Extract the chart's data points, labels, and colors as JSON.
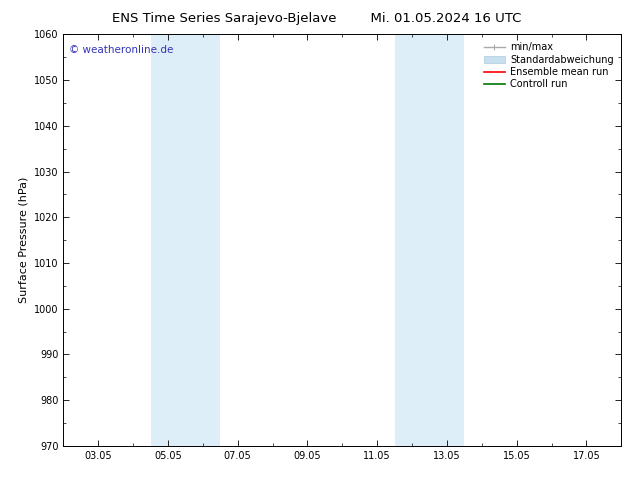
{
  "title_left": "ENS Time Series Sarajevo-Bjelave",
  "title_right": "Mi. 01.05.2024 16 UTC",
  "ylabel": "Surface Pressure (hPa)",
  "ylim": [
    970,
    1060
  ],
  "yticks": [
    970,
    980,
    990,
    1000,
    1010,
    1020,
    1030,
    1040,
    1050,
    1060
  ],
  "xtick_labels": [
    "03.05",
    "05.05",
    "07.05",
    "09.05",
    "11.05",
    "13.05",
    "15.05",
    "17.05"
  ],
  "xtick_positions": [
    2,
    4,
    6,
    8,
    10,
    12,
    14,
    16
  ],
  "x_minor_positions": [
    1,
    2,
    3,
    4,
    5,
    6,
    7,
    8,
    9,
    10,
    11,
    12,
    13,
    14,
    15,
    16,
    17
  ],
  "xlim": [
    1,
    17
  ],
  "shaded_bands": [
    {
      "xmin": 3.5,
      "xmax": 5.5
    },
    {
      "xmin": 10.5,
      "xmax": 12.5
    }
  ],
  "shaded_color": "#ddeef8",
  "background_color": "#ffffff",
  "watermark_text": "© weatheronline.de",
  "watermark_color": "#3333bb",
  "legend_entries": [
    {
      "label": "min/max",
      "color": "#aaaaaa",
      "lw": 1.0
    },
    {
      "label": "Standardabweichung",
      "color": "#c8dff0",
      "lw": 5
    },
    {
      "label": "Ensemble mean run",
      "color": "#ff0000",
      "lw": 1.2
    },
    {
      "label": "Controll run",
      "color": "#007700",
      "lw": 1.2
    }
  ],
  "title_fontsize": 9.5,
  "tick_fontsize": 7,
  "ylabel_fontsize": 8,
  "legend_fontsize": 7,
  "watermark_fontsize": 7.5
}
